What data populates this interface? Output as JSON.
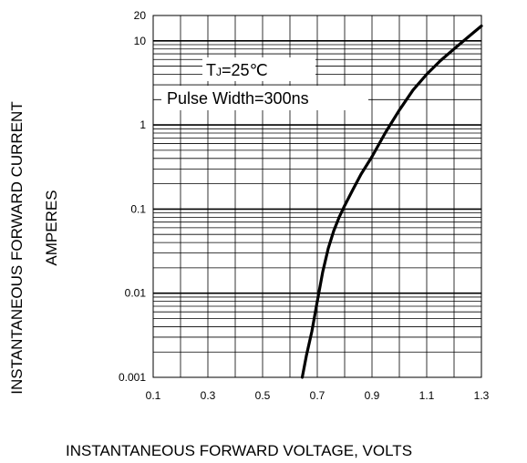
{
  "chart_data": {
    "type": "line",
    "title": "",
    "xlabel": "INSTANTANEOUS FORWARD VOLTAGE,  VOLTS",
    "ylabel": "INSTANTANEOUS FORWARD CURRENT",
    "ylabel_units": "AMPERES",
    "xlim": [
      0.1,
      1.3
    ],
    "ylim": [
      0.001,
      20
    ],
    "yscale": "log",
    "grid": true,
    "x_ticks": [
      0.1,
      0.3,
      0.5,
      0.7,
      0.9,
      1.1,
      1.3
    ],
    "x_tick_labels": [
      "0.1",
      "0.3",
      "0.5",
      "0.7",
      "0.9",
      "1.1",
      "1.3"
    ],
    "y_ticks": [
      0.001,
      0.01,
      0.1,
      1,
      10,
      20
    ],
    "y_tick_labels": [
      "0.001",
      "0.01",
      "0.1",
      "1",
      "10",
      "20"
    ],
    "annotation": {
      "line1_main": "T",
      "line1_sub": "J",
      "line1_rest": "=25℃",
      "line2": "Pulse Width=300ns"
    },
    "series": [
      {
        "x": [
          0.645,
          0.66,
          0.68,
          0.7,
          0.72,
          0.74,
          0.76,
          0.78,
          0.8,
          0.83,
          0.86,
          0.9,
          0.95,
          1.0,
          1.05,
          1.1,
          1.15,
          1.2,
          1.25,
          1.3
        ],
        "y": [
          0.001,
          0.0018,
          0.0035,
          0.008,
          0.018,
          0.034,
          0.055,
          0.08,
          0.11,
          0.17,
          0.26,
          0.42,
          0.82,
          1.5,
          2.6,
          4.0,
          5.8,
          8.0,
          11.0,
          15.0
        ]
      }
    ]
  }
}
